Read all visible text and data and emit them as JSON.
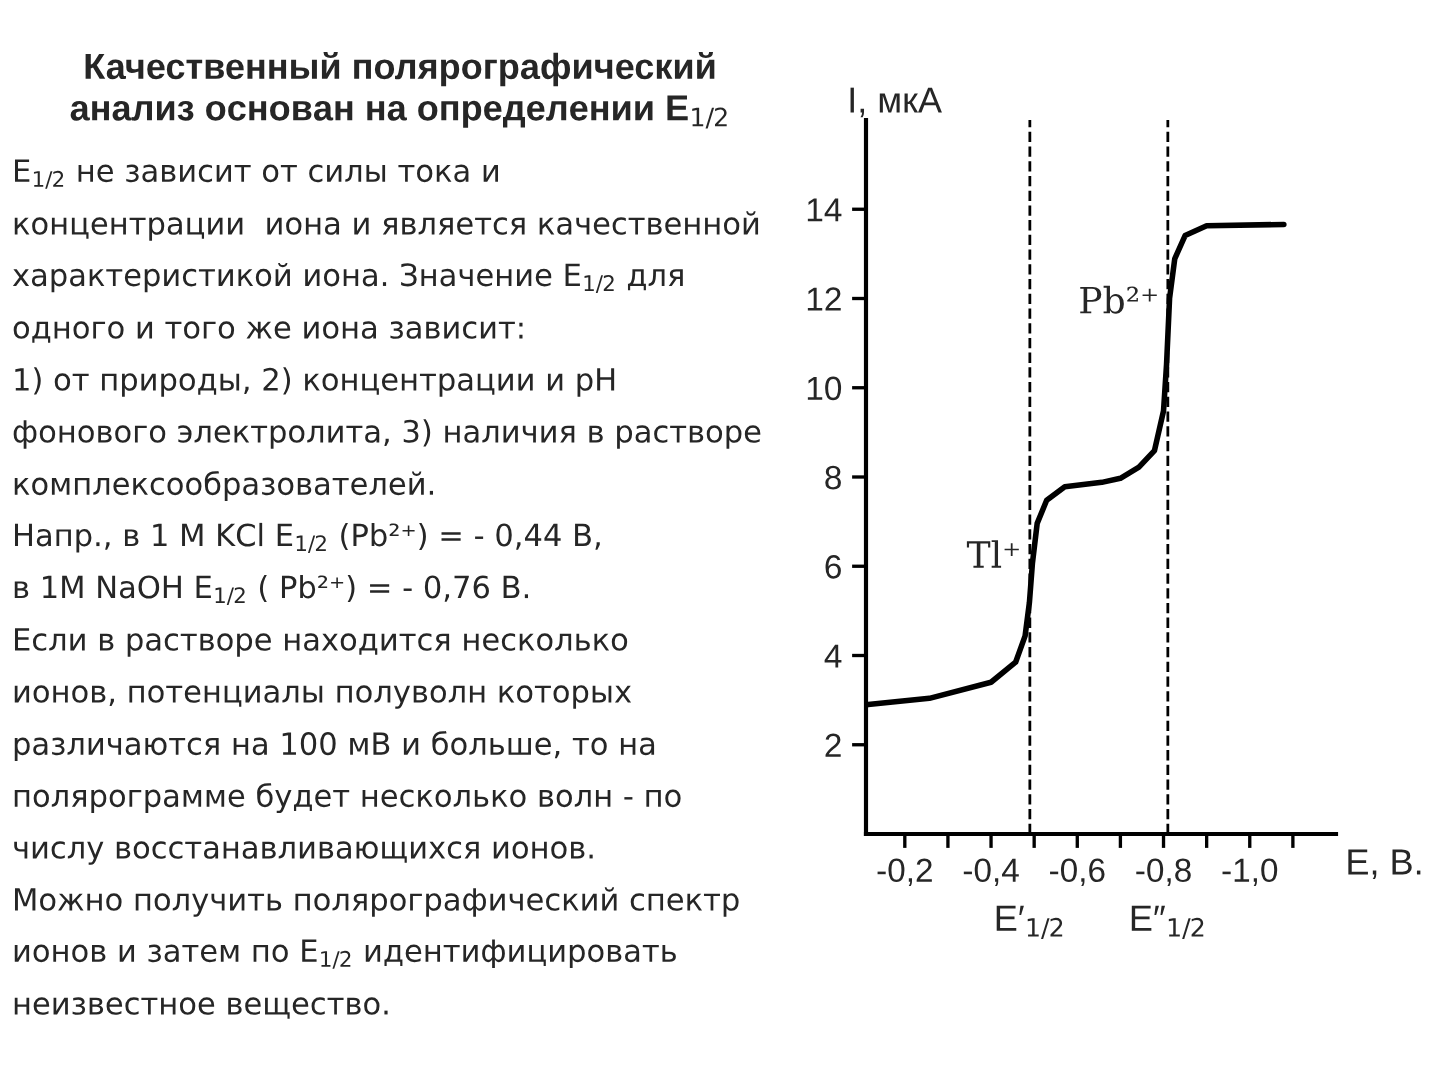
{
  "chart_data": {
    "type": "line",
    "title": "Качественный полярографический\nанализ основан на определении E$_{1/2}$",
    "xlabel": "E, В.",
    "ylabel": "I, мкА",
    "x": [
      -0.115,
      -0.257,
      -0.4,
      -0.457,
      -0.479,
      -0.489,
      -0.496,
      -0.507,
      -0.529,
      -0.571,
      -0.657,
      -0.7,
      -0.743,
      -0.779,
      -0.8,
      -0.807,
      -0.814,
      -0.826,
      -0.85,
      -0.9,
      -1.079
    ],
    "series": [
      {
        "color": "#000000",
        "values": [
          2.9,
          3.04,
          3.4,
          3.85,
          4.44,
          5.19,
          6.07,
          6.96,
          7.48,
          7.78,
          7.88,
          7.97,
          8.22,
          8.59,
          9.48,
          10.52,
          12.0,
          12.89,
          13.41,
          13.63,
          13.66
        ]
      }
    ],
    "xlim": [
      -0.11,
      -1.2
    ],
    "ylim": [
      0,
      16
    ],
    "xticks": [
      {
        "value": -0.2,
        "label": "-0,2"
      },
      {
        "value": -0.3,
        "label": null
      },
      {
        "value": -0.4,
        "label": "-0,4"
      },
      {
        "value": -0.5,
        "label": null
      },
      {
        "value": -0.6,
        "label": "-0,6"
      },
      {
        "value": -0.7,
        "label": null
      },
      {
        "value": -0.8,
        "label": "-0,8"
      },
      {
        "value": -0.9,
        "label": null
      },
      {
        "value": -1.0,
        "label": "-1,0"
      },
      {
        "value": -1.1,
        "label": null
      }
    ],
    "yticks": [
      2,
      4,
      6,
      8,
      10,
      12,
      14
    ],
    "grid": false,
    "legend": false,
    "marker": "none",
    "line_style": "solid",
    "ref_lines": [
      {
        "axis": "x",
        "value": -0.49,
        "label": "E′$_{1/2}$",
        "line_style": "dashed",
        "color": "#000000"
      },
      {
        "axis": "x",
        "value": -0.81,
        "label": "E″$_{1/2}$",
        "line_style": "dashed",
        "color": "#000000"
      }
    ],
    "annotations": [
      {
        "text": "Tl⁺",
        "x": -0.47,
        "y": 5.8
      },
      {
        "text": "Pb²⁺",
        "x": -0.79,
        "y": 11.5
      },
      "E$_{1/2}$ не зависит от силы тока и\nконцентрации  иона и является качественной\nхарактеристикой иона. Значение E$_{1/2}$ для\nодного и того же иона зависит:",
      "1) от природы, 2) концентрации и pH\nфонового электролита, 3) наличия в растворе\nкомплексообразователей.",
      "Напр., в 1 М KCl E$_{1/2}$ (Pb²⁺) = - 0,44 В,\nв 1M NaOH E$_{1/2}$ ( Pb²⁺) = - 0,76 В.",
      "Если в растворе находится несколько\nионов, потенциалы полуволн которых\nразличаются на 100 мВ и больше, то на\nполярограмме будет несколько волн - по\nчислу восстанавливающихся ионов.",
      "Можно получить полярографический спектр\nионов и затем по E$_{1/2}$ идентифицировать\nнеизвестное вещество."
    ]
  }
}
